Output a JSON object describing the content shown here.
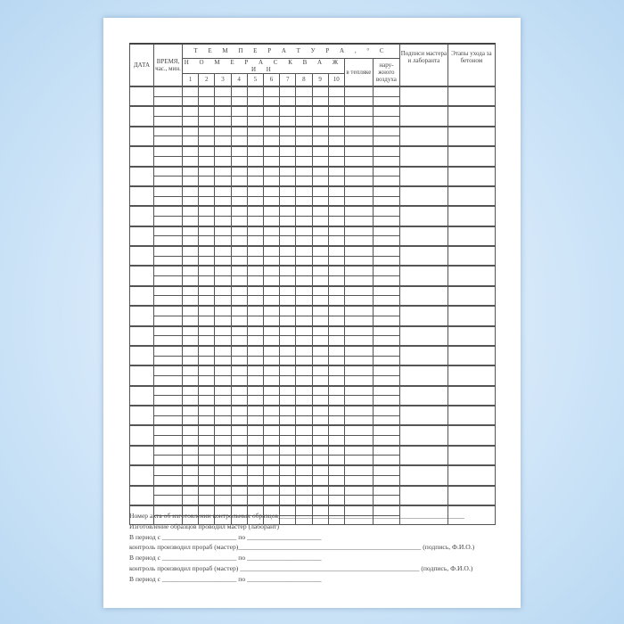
{
  "header": {
    "date": "ДАТА",
    "time": "ВРЕМЯ, час., мин.",
    "temperature": "Т Е М П Е Р А Т У Р А ,  ° С",
    "wells": "Н О М Е Р А  С К В А Ж И Н",
    "well_numbers": [
      "1",
      "2",
      "3",
      "4",
      "5",
      "6",
      "7",
      "8",
      "9",
      "10"
    ],
    "greenhouse": "в тепляке",
    "outdoor": "нару-жного воздуха",
    "signatures": "Подписи мастера и лаборанта",
    "stages": "Этапы ухода за бетоном"
  },
  "groups": 22,
  "footer": [
    "Номер акта об изготовлении контрольных образцов_______________________________________________________",
    "Изготовление образцов проводил мастер (лаборант)",
    "В период с ______________________ по ______________________",
    "контроль производил прораб (мастер)______________________________________________________ (подпись, Ф.И.О.)",
    "В период с ______________________ по ______________________",
    "контроль производил прораб (мастер) _____________________________________________________ (подпись, Ф.И.О.)",
    "В период с ______________________ по ______________________"
  ]
}
